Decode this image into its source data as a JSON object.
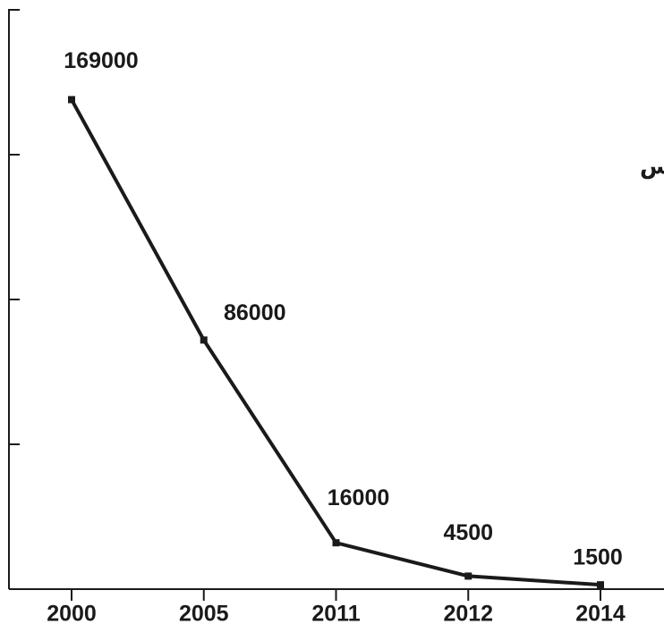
{
  "chart_data": {
    "type": "line",
    "title": "كميات الإنتاج في سيرونيكس",
    "categories": [
      "2000",
      "2005",
      "2011",
      "2012",
      "2014"
    ],
    "values": [
      169000,
      86000,
      16000,
      4500,
      1500
    ],
    "color": "#1a1a1a",
    "ylim": [
      0,
      200000
    ],
    "yticks": [
      0,
      50000,
      100000,
      150000,
      200000
    ]
  }
}
